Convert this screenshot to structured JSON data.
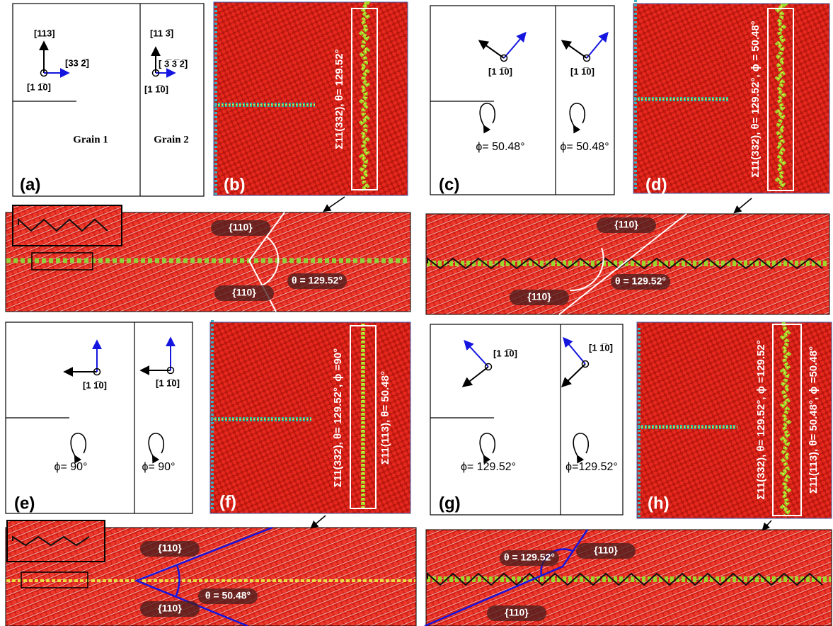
{
  "a": {
    "label": "(a)",
    "g1_z": "[113]",
    "g1_x": "[33 2̅]",
    "g1_normal": "[1 1̅0]",
    "g2_z": "[11 3̅]",
    "g2_x": "[ 3̅ 3̅ 2̅]",
    "g2_normal": "[1 1̅0]",
    "grain1": "Grain 1",
    "grain2": "Grain 2"
  },
  "b": {
    "label": "(b)",
    "annotation": "Σ11(332), θ= 129.52°"
  },
  "c": {
    "label": "(c)",
    "normal_left": "[1 1̅0]",
    "normal_right": "[1 1̅0]",
    "phi_left": "ϕ= 50.48°",
    "phi_right": "ϕ= 50.48°"
  },
  "d": {
    "label": "(d)",
    "annotation": "Σ11(332), θ= 129.52°, ϕ = 50.48°"
  },
  "zoom_b": {
    "plane_top": "{110}",
    "plane_bottom": "{110}",
    "angle": "θ = 129.52°"
  },
  "zoom_d": {
    "plane_top": "{110}",
    "plane_bottom": "{110}",
    "angle": "θ = 129.52°"
  },
  "e": {
    "label": "(e)",
    "normal_left": "[1 1̅0]",
    "normal_right": "[1 1̅0]",
    "phi_left": "ϕ= 90°",
    "phi_right": "ϕ= 90°"
  },
  "f": {
    "label": "(f)",
    "annotation_1": "Σ11(332), θ= 129.52°, ϕ =90°",
    "annotation_2": "Σ11(113), θ= 50.48°"
  },
  "g": {
    "label": "(g)",
    "normal_left": "[1 1̅0]",
    "normal_right": "[1 1̅0]",
    "phi_left": "ϕ= 129.52°",
    "phi_right": "ϕ=129.52°"
  },
  "h": {
    "label": "(h)",
    "annotation_1": "Σ11(332), θ= 129.52°, ϕ =129.52°",
    "annotation_2": "Σ11(113), θ= 50.48°, ϕ =50.48°"
  },
  "zoom_f": {
    "plane_top": "{110}",
    "plane_bottom": "{110}",
    "angle": "θ = 50.48°"
  },
  "zoom_h": {
    "angle": "θ = 129.52°",
    "plane_top": "{110}",
    "plane_bottom": "{110}"
  }
}
